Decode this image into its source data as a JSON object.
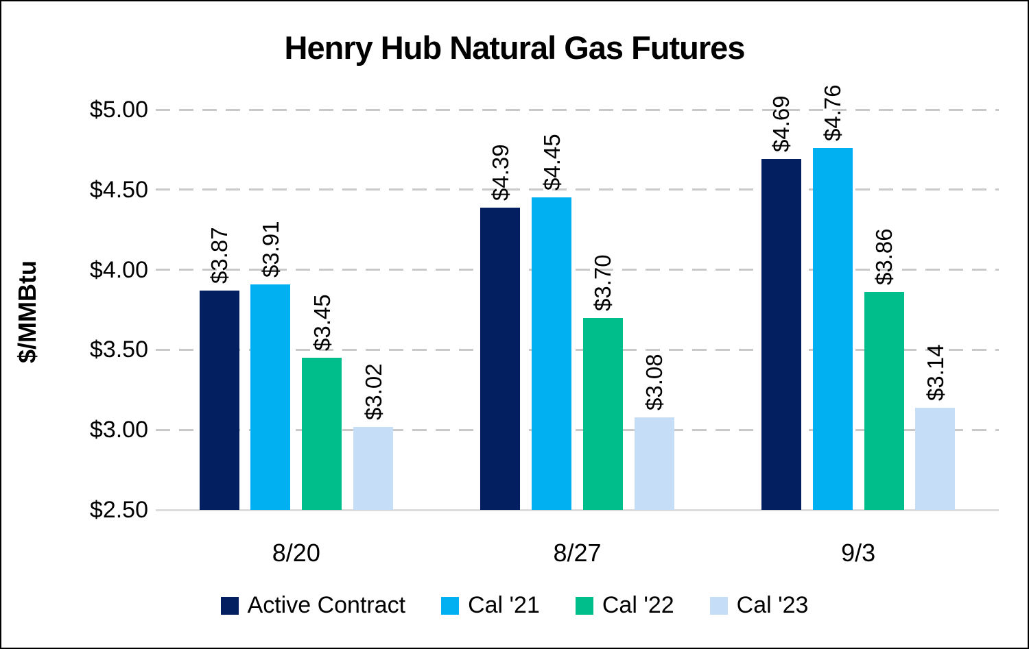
{
  "chart_data": {
    "type": "bar",
    "title": "Henry Hub Natural Gas Futures",
    "ylabel": "$/MMBtu",
    "xlabel": "",
    "categories": [
      "8/20",
      "8/27",
      "9/3"
    ],
    "series": [
      {
        "name": "Active Contract",
        "color": "#041F5F",
        "values": [
          3.87,
          4.39,
          4.69
        ]
      },
      {
        "name": "Cal '21",
        "color": "#00B0F0",
        "values": [
          3.91,
          4.45,
          4.76
        ]
      },
      {
        "name": "Cal '22",
        "color": "#00BE8C",
        "values": [
          3.45,
          3.7,
          3.86
        ]
      },
      {
        "name": "Cal '23",
        "color": "#C5DDF6",
        "values": [
          3.02,
          3.08,
          3.14
        ]
      }
    ],
    "value_label_format": "$#.00",
    "value_labels": [
      [
        "$3.87",
        "$4.39",
        "$4.69"
      ],
      [
        "$3.91",
        "$4.45",
        "$4.76"
      ],
      [
        "$3.45",
        "$3.70",
        "$3.86"
      ],
      [
        "$3.02",
        "$3.08",
        "$3.14"
      ]
    ],
    "ylim": [
      2.5,
      5.0
    ],
    "ytick_step": 0.5,
    "yticks": [
      "$5.00",
      "$4.50",
      "$4.00",
      "$3.50",
      "$3.00",
      "$2.50"
    ],
    "grid": "horizontal-dashed",
    "grid_color": "#C9C9C9",
    "axis_line_color": "#DCDCDC",
    "legend_position": "bottom",
    "text_color": "#000000"
  }
}
